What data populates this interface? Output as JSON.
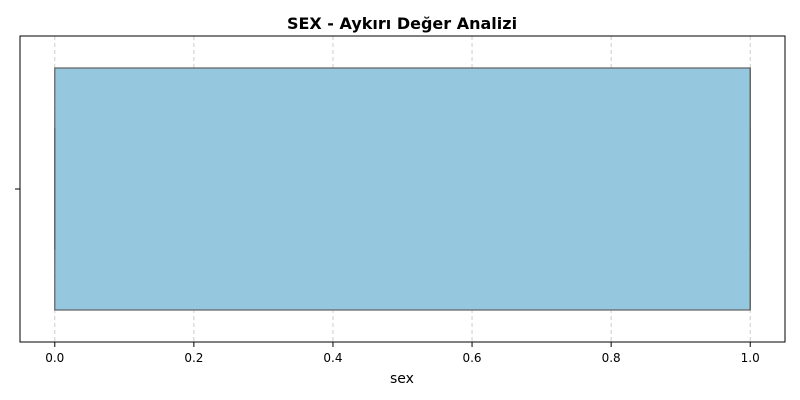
{
  "chart_data": {
    "type": "box",
    "title": "SEX - Aykırı Değer Analizi",
    "xlabel": "sex",
    "ylabel": "",
    "xlim": [
      -0.05,
      1.05
    ],
    "xticks": [
      0.0,
      0.2,
      0.4,
      0.6,
      0.8,
      1.0
    ],
    "xtick_labels": [
      "0.0",
      "0.2",
      "0.4",
      "0.6",
      "0.8",
      "1.0"
    ],
    "orientation": "horizontal",
    "grid": "x-dashed",
    "series": [
      {
        "min": 0,
        "q1": 0,
        "median": 1,
        "q3": 1,
        "max": 1
      }
    ],
    "colors": {
      "box_fill": "#95c8de",
      "box_edge": "#5f5f5f",
      "grid": "#cccccc",
      "axis": "#000000"
    }
  }
}
